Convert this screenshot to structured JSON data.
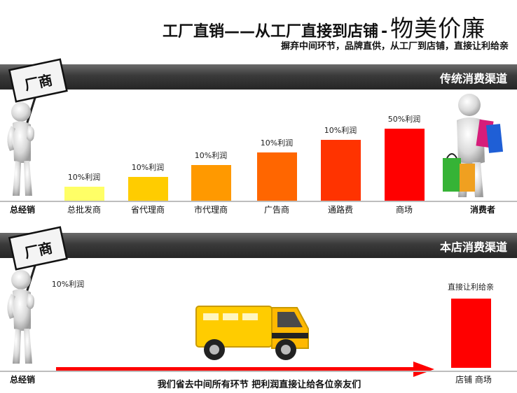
{
  "header": {
    "title_part1": "工厂直销——从工厂直接到店铺",
    "title_separator": "-",
    "title_part2": "物美价廉",
    "subtitle": "摒弃中间环节，品牌直供，从工厂到店铺，直接让利给亲"
  },
  "section_traditional": {
    "banner_label": "传统消费渠道",
    "sign_text": "厂商",
    "left_label": "总经销",
    "right_label": "消费者",
    "bars": [
      {
        "category": "总批发商",
        "profit_label": "10%利润",
        "color": "#ffff66"
      },
      {
        "category": "省代理商",
        "profit_label": "10%利润",
        "color": "#ffcc00"
      },
      {
        "category": "市代理商",
        "profit_label": "10%利润",
        "color": "#ff9900"
      },
      {
        "category": "广告商",
        "profit_label": "10%利润",
        "color": "#ff6600"
      },
      {
        "category": "通路费",
        "profit_label": "10%利润",
        "color": "#ff3300"
      },
      {
        "category": "商场",
        "profit_label": "50%利润",
        "color": "#ff0000"
      }
    ]
  },
  "section_store": {
    "banner_label": "本店消费渠道",
    "sign_text": "厂商",
    "left_label": "总经销",
    "left_profit": "10%利润",
    "right_top_label": "直接让利给亲",
    "right_bottom_label": "店铺  商场",
    "arrow_text": "我们省去中间所有环节 把利润直接让给各位亲友们",
    "bar_color": "#ff0000"
  },
  "colors": {
    "banner_dark": "#2b2b2b",
    "arrow_red": "#ff0000",
    "truck_yellow": "#ffcc00"
  },
  "icons": {
    "figure_with_sign": "person-holding-sign-icon",
    "shopper": "shopper-with-bags-icon",
    "truck": "delivery-truck-icon"
  }
}
